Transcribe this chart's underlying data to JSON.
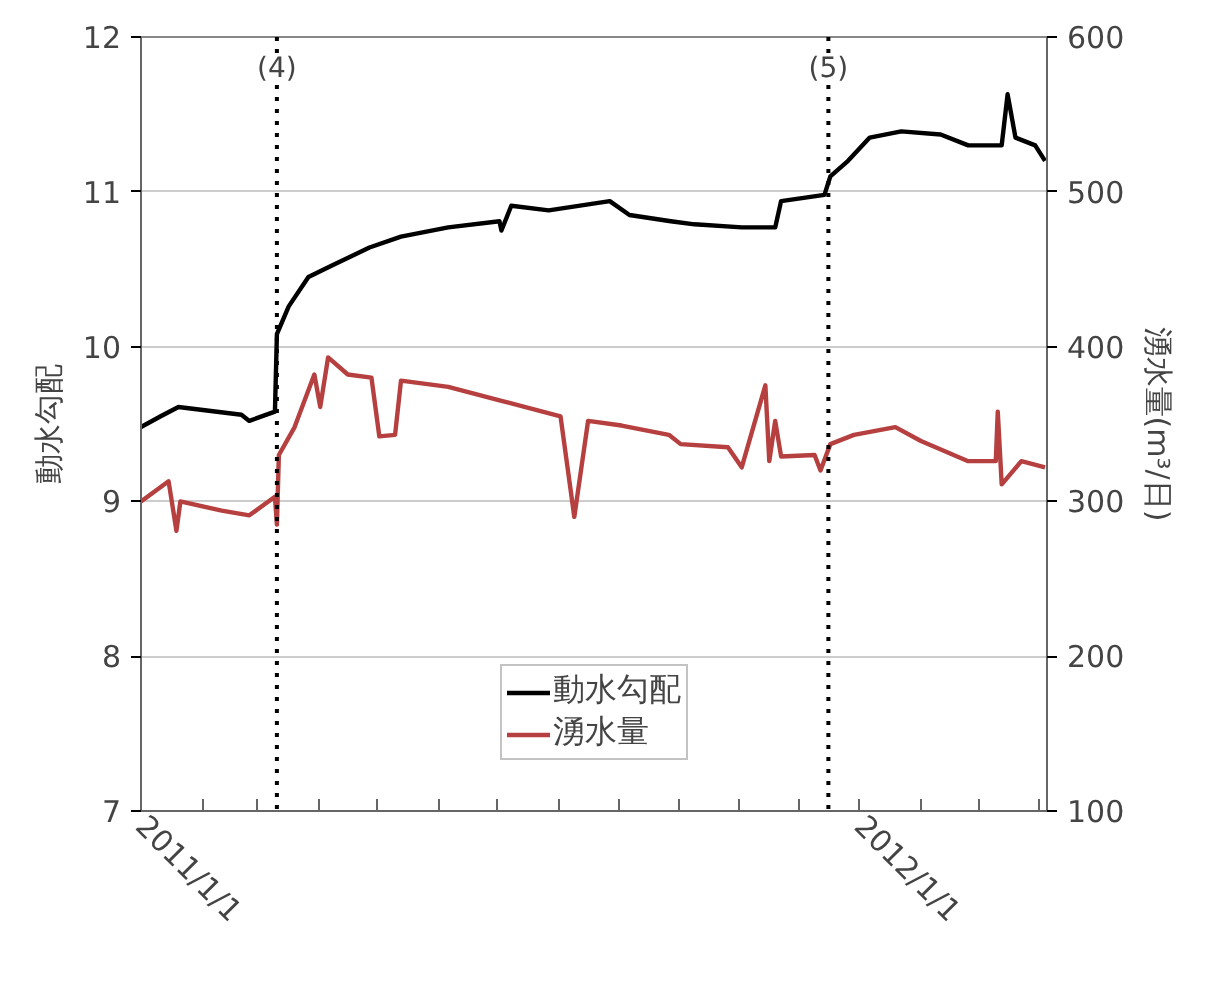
{
  "chart_data": {
    "type": "line",
    "ylabel": "動水勾配",
    "y2label": "湧水量(m³/日)",
    "xlim": [
      "2011-01-01",
      "2012-04-05"
    ],
    "xticks": [
      {
        "value": "2011-01-01",
        "label": "2011/1/1"
      },
      {
        "value": "2011-02-01",
        "label": null
      },
      {
        "value": "2011-03-01",
        "label": null
      },
      {
        "value": "2011-04-01",
        "label": null
      },
      {
        "value": "2011-05-01",
        "label": null
      },
      {
        "value": "2011-06-01",
        "label": null
      },
      {
        "value": "2011-07-01",
        "label": null
      },
      {
        "value": "2011-08-01",
        "label": null
      },
      {
        "value": "2011-09-01",
        "label": null
      },
      {
        "value": "2011-10-01",
        "label": null
      },
      {
        "value": "2011-11-01",
        "label": null
      },
      {
        "value": "2011-12-01",
        "label": null
      },
      {
        "value": "2012-01-01",
        "label": "2012/1/1"
      },
      {
        "value": "2012-02-01",
        "label": null
      },
      {
        "value": "2012-03-01",
        "label": null
      },
      {
        "value": "2012-04-01",
        "label": null
      }
    ],
    "ylim": [
      7,
      12
    ],
    "yticks": [
      7,
      8,
      9,
      10,
      11,
      12
    ],
    "y2lim": [
      100,
      600
    ],
    "y2ticks": [
      100,
      200,
      300,
      400,
      500,
      600
    ],
    "grid": "y",
    "legend": "bottom",
    "line_style": "solid",
    "marker": "none",
    "ref_lines": [
      {
        "axis": "x",
        "value": "2011-03-11",
        "label": "(4)",
        "line_style": "dotted",
        "color": "#000000"
      },
      {
        "axis": "x",
        "value": "2011-12-16",
        "label": "(5)",
        "line_style": "dotted",
        "color": "#000000"
      }
    ],
    "series": [
      {
        "name": "動水勾配",
        "color": "#000000",
        "x": [
          "2011-01-01",
          "2011-01-11",
          "2011-01-20",
          "2011-02-21",
          "2011-02-25",
          "2011-03-10",
          "2011-03-11",
          "2011-03-17",
          "2011-03-27",
          "2011-04-09",
          "2011-04-27",
          "2011-05-13",
          "2011-06-06",
          "2011-07-02",
          "2011-07-03",
          "2011-07-08",
          "2011-07-27",
          "2011-08-27",
          "2011-09-06",
          "2011-09-27",
          "2011-10-09",
          "2011-11-02",
          "2011-11-19",
          "2011-11-22",
          "2011-12-14",
          "2011-12-17",
          "2011-12-26",
          "2012-01-06",
          "2012-01-22",
          "2012-02-11",
          "2012-02-25",
          "2012-03-13",
          "2012-03-16",
          "2012-03-20",
          "2012-03-30",
          "2012-04-04"
        ],
        "values": [
          9.48,
          9.55,
          9.61,
          9.56,
          9.52,
          9.58,
          10.08,
          10.26,
          10.45,
          10.53,
          10.64,
          10.71,
          10.77,
          10.81,
          10.75,
          10.91,
          10.88,
          10.94,
          10.85,
          10.81,
          10.79,
          10.77,
          10.77,
          10.94,
          10.98,
          11.1,
          11.2,
          11.35,
          11.39,
          11.37,
          11.3,
          11.3,
          11.63,
          11.35,
          11.3,
          11.2
        ]
      },
      {
        "name": "湧水量",
        "color": "#b5403f",
        "axis": "y2",
        "x": [
          "2011-01-01",
          "2011-01-15",
          "2011-01-19",
          "2011-01-21",
          "2011-02-11",
          "2011-02-25",
          "2011-03-10",
          "2011-03-11",
          "2011-03-12",
          "2011-03-20",
          "2011-03-30",
          "2011-04-02",
          "2011-04-06",
          "2011-04-16",
          "2011-04-28",
          "2011-05-02",
          "2011-05-10",
          "2011-05-13",
          "2011-06-06",
          "2011-07-03",
          "2011-08-02",
          "2011-08-09",
          "2011-08-16",
          "2011-09-02",
          "2011-09-26",
          "2011-10-02",
          "2011-10-26",
          "2011-11-02",
          "2011-11-14",
          "2011-11-16",
          "2011-11-19",
          "2011-11-22",
          "2011-12-09",
          "2011-12-12",
          "2011-12-17",
          "2011-12-29",
          "2012-01-19",
          "2012-02-01",
          "2012-02-25",
          "2012-03-10",
          "2012-03-11",
          "2012-03-13",
          "2012-03-23",
          "2012-04-04"
        ],
        "values": [
          300,
          313,
          281,
          300,
          294,
          291,
          303,
          285,
          330,
          348,
          382,
          361,
          393,
          382,
          380,
          342,
          343,
          378,
          374,
          365,
          355,
          290,
          352,
          349,
          343,
          337,
          335,
          322,
          375,
          326,
          352,
          329,
          330,
          320,
          337,
          343,
          348,
          339,
          326,
          326,
          358,
          311,
          326,
          322
        ]
      }
    ]
  }
}
